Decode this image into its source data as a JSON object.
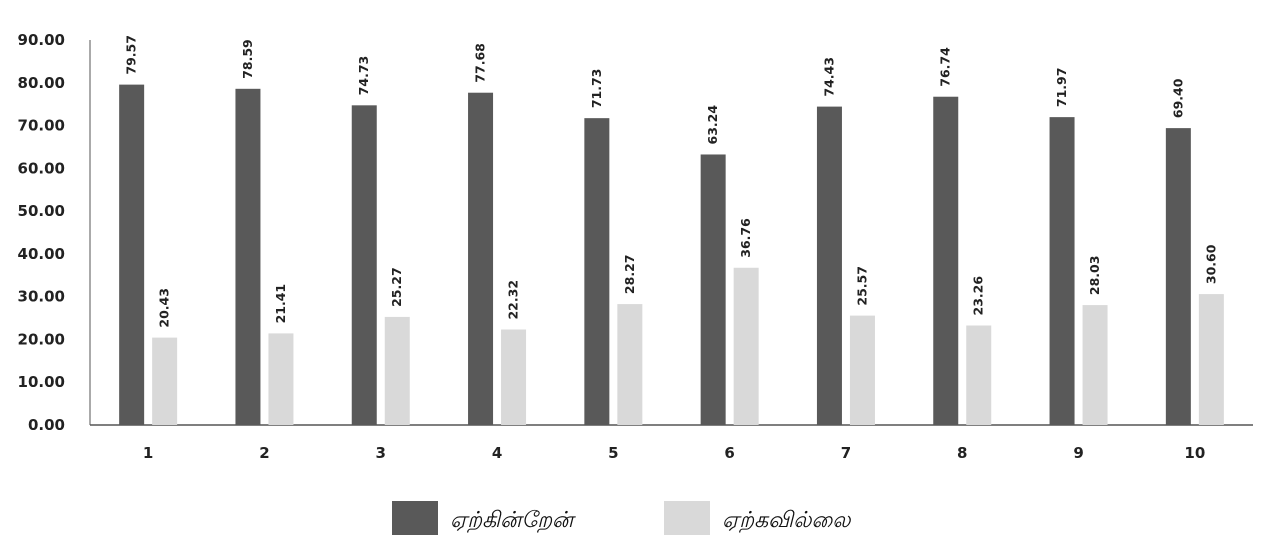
{
  "chart_data": {
    "type": "bar",
    "categories": [
      "1",
      "2",
      "3",
      "4",
      "5",
      "6",
      "7",
      "8",
      "9",
      "10"
    ],
    "series": [
      {
        "name": "ஏற்கின்றேன்",
        "color": "#595959",
        "values": [
          79.57,
          78.59,
          74.73,
          77.68,
          71.73,
          63.24,
          74.43,
          76.74,
          71.97,
          69.4
        ],
        "labels": [
          "79.57",
          "78.59",
          "74.73",
          "77.68",
          "71.73",
          "63.24",
          "74.43",
          "76.74",
          "71.97",
          "69.40"
        ]
      },
      {
        "name": "ஏற்கவில்லை",
        "color": "#d9d9d9",
        "values": [
          20.43,
          21.41,
          25.27,
          22.32,
          28.27,
          36.76,
          25.57,
          23.26,
          28.03,
          30.6
        ],
        "labels": [
          "20.43",
          "21.41",
          "25.27",
          "22.32",
          "28.27",
          "36.76",
          "25.57",
          "23.26",
          "28.03",
          "30.60"
        ]
      }
    ],
    "yticks": [
      "0.00",
      "10.00",
      "20.00",
      "30.00",
      "40.00",
      "50.00",
      "60.00",
      "70.00",
      "80.00",
      "90.00"
    ],
    "ylim": [
      0,
      90
    ],
    "title": "",
    "xlabel": "",
    "ylabel": "",
    "grid": false,
    "legend_position": "bottom-center",
    "data_label_orientation": "vertical"
  }
}
